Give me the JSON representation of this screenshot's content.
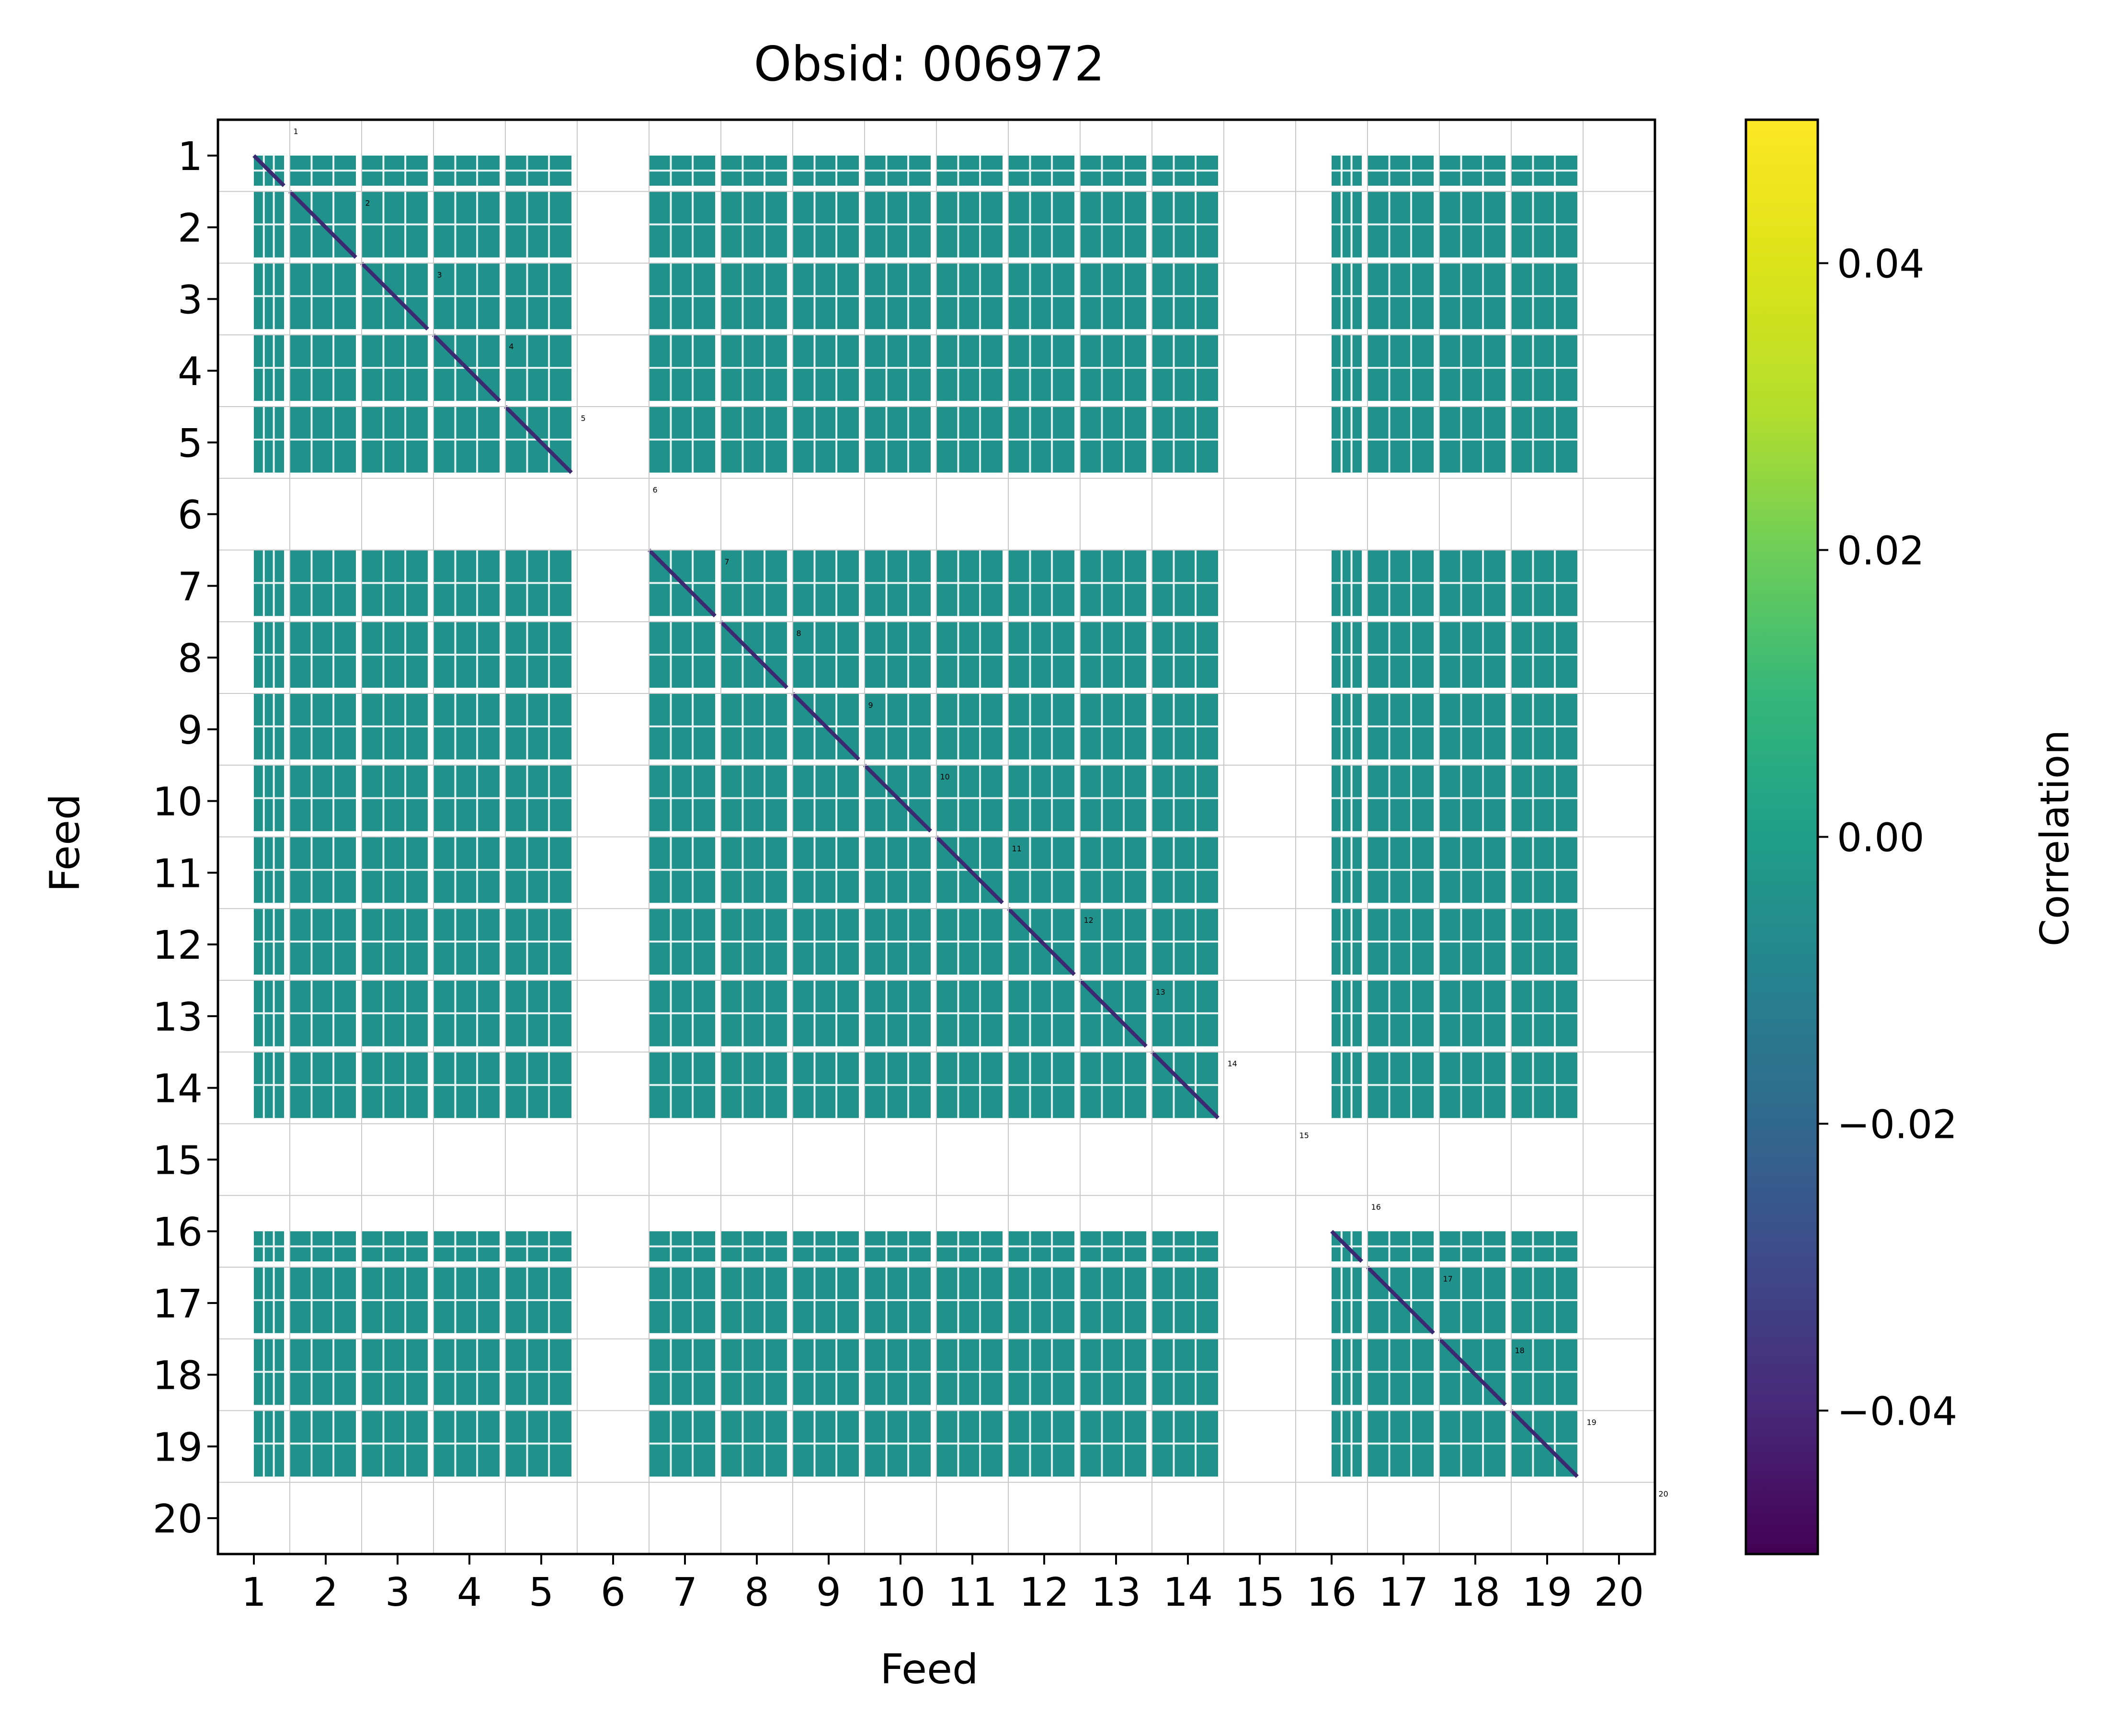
{
  "chart_data": {
    "type": "heatmap",
    "title": "Obsid: 006972",
    "xlabel": "Feed",
    "ylabel": "Feed",
    "x_ticks": [
      "1",
      "2",
      "3",
      "4",
      "5",
      "6",
      "7",
      "8",
      "9",
      "10",
      "11",
      "12",
      "13",
      "14",
      "15",
      "16",
      "17",
      "18",
      "19",
      "20"
    ],
    "y_ticks": [
      "1",
      "2",
      "3",
      "4",
      "5",
      "6",
      "7",
      "8",
      "9",
      "10",
      "11",
      "12",
      "13",
      "14",
      "15",
      "16",
      "17",
      "18",
      "19",
      "20"
    ],
    "feeds": [
      1,
      2,
      3,
      4,
      5,
      6,
      7,
      8,
      9,
      10,
      11,
      12,
      13,
      14,
      15,
      16,
      17,
      18,
      19,
      20
    ],
    "masked_feeds": [
      6,
      15,
      20
    ],
    "partially_masked_feeds": [
      1,
      16
    ],
    "offdiagonal_value": 0.0,
    "diagonal_value": -0.05,
    "diagonal_labels": [
      "1",
      "2",
      "3",
      "4",
      "5",
      "6",
      "7",
      "8",
      "9",
      "10",
      "11",
      "12",
      "13",
      "14",
      "15",
      "16",
      "17",
      "18",
      "19",
      "20"
    ],
    "colorbar": {
      "label": "Correlation",
      "colormap": "viridis",
      "vmin": -0.05,
      "vmax": 0.05,
      "ticks": [
        "0.04",
        "0.02",
        "0.00",
        "−0.02",
        "−0.04"
      ],
      "tick_values": [
        0.04,
        0.02,
        0.0,
        -0.02,
        -0.04
      ]
    },
    "colors": {
      "cell": "#21918c",
      "diagonal": "#3b2a72",
      "masked": "#ffffff",
      "grid": "#c8c8c8"
    }
  }
}
